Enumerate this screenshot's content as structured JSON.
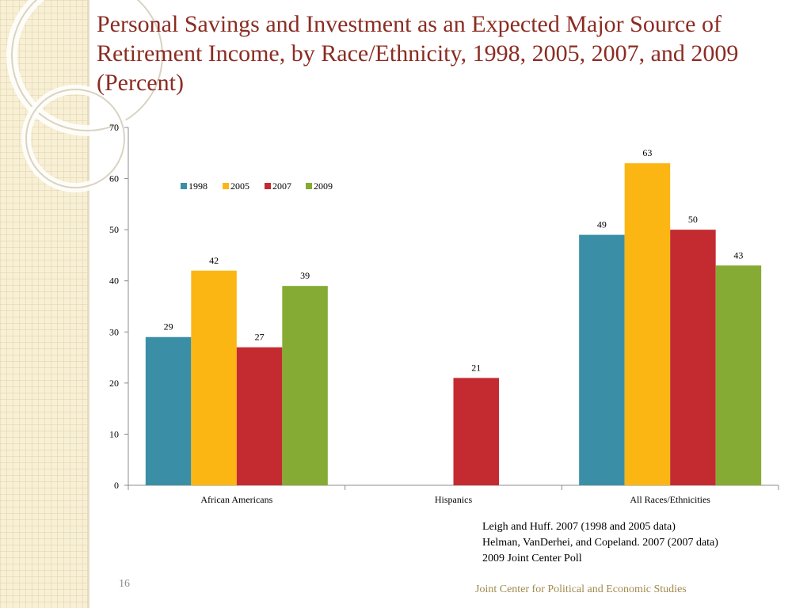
{
  "slide": {
    "title": "Personal Savings and Investment as an Expected Major Source of Retirement Income, by Race/Ethnicity, 1998, 2005, 2007, and 2009 (Percent)",
    "slide_number": "16",
    "footer": "Joint Center for Political and Economic Studies",
    "sources": [
      "Leigh and Huff. 2007 (1998 and 2005 data)",
      "Helman, VanDerhei, and Copeland. 2007 (2007 data)",
      "2009 Joint Center Poll"
    ]
  },
  "chart_data": {
    "type": "bar",
    "title": "",
    "xlabel": "",
    "ylabel": "",
    "ylim": [
      0,
      70
    ],
    "yticks": [
      0,
      10,
      20,
      30,
      40,
      50,
      60,
      70
    ],
    "categories": [
      "African Americans",
      "Hispanics",
      "All Races/Ethnicities"
    ],
    "series": [
      {
        "name": "1998",
        "color": "#3a8fa6",
        "values": [
          29,
          null,
          49
        ]
      },
      {
        "name": "2005",
        "color": "#fcb614",
        "values": [
          42,
          null,
          63
        ]
      },
      {
        "name": "2007",
        "color": "#c32b30",
        "values": [
          27,
          21,
          50
        ]
      },
      {
        "name": "2009",
        "color": "#86ab34",
        "values": [
          39,
          null,
          43
        ]
      }
    ],
    "legend": "top-left inside plot",
    "grid": false
  }
}
